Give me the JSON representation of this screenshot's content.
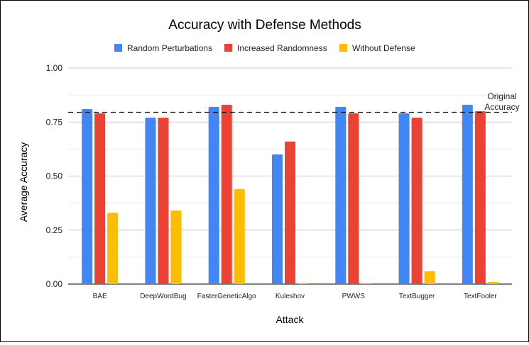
{
  "chart_data": {
    "type": "bar",
    "title": "Accuracy with Defense Methods",
    "xlabel": "Attack",
    "ylabel": "Average Accuracy",
    "ylim": [
      0,
      1
    ],
    "yticks": [
      "0.00",
      "0.25",
      "0.50",
      "0.75",
      "1.00"
    ],
    "ytick_values": [
      0,
      0.25,
      0.5,
      0.75,
      1.0
    ],
    "grid": true,
    "legend_position": "top",
    "categories": [
      "BAE",
      "DeepWordBug",
      "FasterGeneticAlgo",
      "Kuleshov",
      "PWWS",
      "TextBugger",
      "TextFooler"
    ],
    "series": [
      {
        "name": "Random Perturbations",
        "color": "#4285f4",
        "values": [
          0.81,
          0.77,
          0.82,
          0.6,
          0.82,
          0.79,
          0.83
        ]
      },
      {
        "name": "Increased Randomness",
        "color": "#ea4335",
        "values": [
          0.79,
          0.77,
          0.83,
          0.66,
          0.79,
          0.77,
          0.8
        ]
      },
      {
        "name": "Without Defense",
        "color": "#fbbc04",
        "values": [
          0.33,
          0.34,
          0.44,
          0.005,
          0.005,
          0.06,
          0.01
        ]
      }
    ],
    "reference_line": {
      "value": 0.795,
      "label_line1": "Original",
      "label_line2": "Accuracy",
      "style": "dashed"
    }
  }
}
